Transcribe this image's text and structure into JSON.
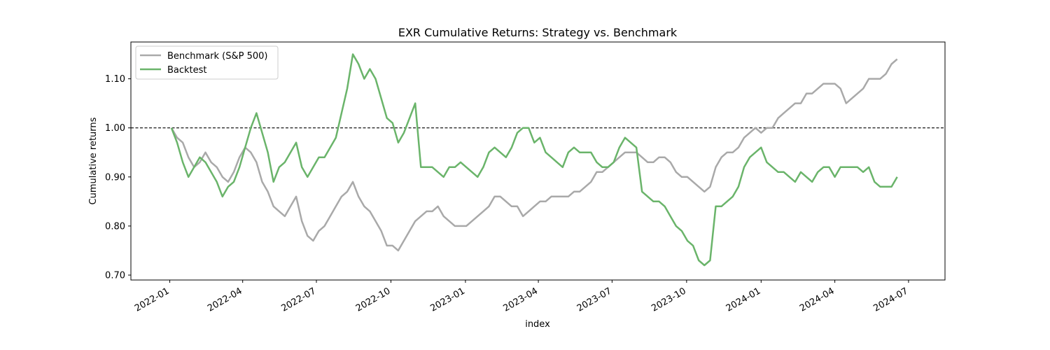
{
  "chart_data": {
    "type": "line",
    "title": "EXR Cumulative Returns: Strategy vs. Benchmark",
    "xlabel": "index",
    "ylabel": "Cumulative returns",
    "xlim": [
      "2021-11-14",
      "2024-08-15"
    ],
    "ylim": [
      0.69,
      1.175
    ],
    "x_ticks": [
      "2022-01",
      "2022-04",
      "2022-07",
      "2022-10",
      "2023-01",
      "2023-04",
      "2023-07",
      "2023-10",
      "2024-01",
      "2024-04",
      "2024-07"
    ],
    "y_ticks": [
      "0.70",
      "0.80",
      "0.90",
      "1.00",
      "1.10"
    ],
    "y_tick_values": [
      0.7,
      0.8,
      0.9,
      1.0,
      1.1
    ],
    "reference_line": {
      "y": 1.0,
      "style": "dashed",
      "color": "#000000"
    },
    "grid": false,
    "legend_position": "top-left",
    "series": [
      {
        "name": "Benchmark (S&P 500)",
        "color": "#a9a9a9",
        "points": [
          [
            "2022-01-03",
            1.0
          ],
          [
            "2022-01-10",
            0.98
          ],
          [
            "2022-01-17",
            0.97
          ],
          [
            "2022-01-24",
            0.94
          ],
          [
            "2022-01-31",
            0.92
          ],
          [
            "2022-02-07",
            0.93
          ],
          [
            "2022-02-14",
            0.95
          ],
          [
            "2022-02-21",
            0.93
          ],
          [
            "2022-02-28",
            0.92
          ],
          [
            "2022-03-07",
            0.9
          ],
          [
            "2022-03-14",
            0.89
          ],
          [
            "2022-03-21",
            0.91
          ],
          [
            "2022-03-28",
            0.94
          ],
          [
            "2022-04-04",
            0.96
          ],
          [
            "2022-04-11",
            0.95
          ],
          [
            "2022-04-18",
            0.93
          ],
          [
            "2022-04-25",
            0.89
          ],
          [
            "2022-05-02",
            0.87
          ],
          [
            "2022-05-09",
            0.84
          ],
          [
            "2022-05-16",
            0.83
          ],
          [
            "2022-05-23",
            0.82
          ],
          [
            "2022-05-30",
            0.84
          ],
          [
            "2022-06-06",
            0.86
          ],
          [
            "2022-06-13",
            0.81
          ],
          [
            "2022-06-20",
            0.78
          ],
          [
            "2022-06-27",
            0.77
          ],
          [
            "2022-07-04",
            0.79
          ],
          [
            "2022-07-11",
            0.8
          ],
          [
            "2022-07-18",
            0.82
          ],
          [
            "2022-07-25",
            0.84
          ],
          [
            "2022-08-01",
            0.86
          ],
          [
            "2022-08-08",
            0.87
          ],
          [
            "2022-08-15",
            0.89
          ],
          [
            "2022-08-22",
            0.86
          ],
          [
            "2022-08-29",
            0.84
          ],
          [
            "2022-09-05",
            0.83
          ],
          [
            "2022-09-12",
            0.81
          ],
          [
            "2022-09-19",
            0.79
          ],
          [
            "2022-09-26",
            0.76
          ],
          [
            "2022-10-03",
            0.76
          ],
          [
            "2022-10-10",
            0.75
          ],
          [
            "2022-10-17",
            0.77
          ],
          [
            "2022-10-24",
            0.79
          ],
          [
            "2022-10-31",
            0.81
          ],
          [
            "2022-11-07",
            0.82
          ],
          [
            "2022-11-14",
            0.83
          ],
          [
            "2022-11-21",
            0.83
          ],
          [
            "2022-11-28",
            0.84
          ],
          [
            "2022-12-05",
            0.82
          ],
          [
            "2022-12-12",
            0.81
          ],
          [
            "2022-12-19",
            0.8
          ],
          [
            "2022-12-26",
            0.8
          ],
          [
            "2023-01-02",
            0.8
          ],
          [
            "2023-01-09",
            0.81
          ],
          [
            "2023-01-16",
            0.82
          ],
          [
            "2023-01-23",
            0.83
          ],
          [
            "2023-01-30",
            0.84
          ],
          [
            "2023-02-06",
            0.86
          ],
          [
            "2023-02-13",
            0.86
          ],
          [
            "2023-02-20",
            0.85
          ],
          [
            "2023-02-27",
            0.84
          ],
          [
            "2023-03-06",
            0.84
          ],
          [
            "2023-03-13",
            0.82
          ],
          [
            "2023-03-20",
            0.83
          ],
          [
            "2023-03-27",
            0.84
          ],
          [
            "2023-04-03",
            0.85
          ],
          [
            "2023-04-10",
            0.85
          ],
          [
            "2023-04-17",
            0.86
          ],
          [
            "2023-04-24",
            0.86
          ],
          [
            "2023-05-01",
            0.86
          ],
          [
            "2023-05-08",
            0.86
          ],
          [
            "2023-05-15",
            0.87
          ],
          [
            "2023-05-22",
            0.87
          ],
          [
            "2023-05-29",
            0.88
          ],
          [
            "2023-06-05",
            0.89
          ],
          [
            "2023-06-12",
            0.91
          ],
          [
            "2023-06-19",
            0.91
          ],
          [
            "2023-06-26",
            0.92
          ],
          [
            "2023-07-03",
            0.93
          ],
          [
            "2023-07-10",
            0.94
          ],
          [
            "2023-07-17",
            0.95
          ],
          [
            "2023-07-24",
            0.95
          ],
          [
            "2023-07-31",
            0.95
          ],
          [
            "2023-08-07",
            0.94
          ],
          [
            "2023-08-14",
            0.93
          ],
          [
            "2023-08-21",
            0.93
          ],
          [
            "2023-08-28",
            0.94
          ],
          [
            "2023-09-04",
            0.94
          ],
          [
            "2023-09-11",
            0.93
          ],
          [
            "2023-09-18",
            0.91
          ],
          [
            "2023-09-25",
            0.9
          ],
          [
            "2023-10-02",
            0.9
          ],
          [
            "2023-10-09",
            0.89
          ],
          [
            "2023-10-16",
            0.88
          ],
          [
            "2023-10-23",
            0.87
          ],
          [
            "2023-10-30",
            0.88
          ],
          [
            "2023-11-06",
            0.92
          ],
          [
            "2023-11-13",
            0.94
          ],
          [
            "2023-11-20",
            0.95
          ],
          [
            "2023-11-27",
            0.95
          ],
          [
            "2023-12-04",
            0.96
          ],
          [
            "2023-12-11",
            0.98
          ],
          [
            "2023-12-18",
            0.99
          ],
          [
            "2023-12-25",
            1.0
          ],
          [
            "2024-01-01",
            0.99
          ],
          [
            "2024-01-08",
            1.0
          ],
          [
            "2024-01-15",
            1.0
          ],
          [
            "2024-01-22",
            1.02
          ],
          [
            "2024-01-29",
            1.03
          ],
          [
            "2024-02-05",
            1.04
          ],
          [
            "2024-02-12",
            1.05
          ],
          [
            "2024-02-19",
            1.05
          ],
          [
            "2024-02-26",
            1.07
          ],
          [
            "2024-03-04",
            1.07
          ],
          [
            "2024-03-11",
            1.08
          ],
          [
            "2024-03-18",
            1.09
          ],
          [
            "2024-03-25",
            1.09
          ],
          [
            "2024-04-01",
            1.09
          ],
          [
            "2024-04-08",
            1.08
          ],
          [
            "2024-04-15",
            1.05
          ],
          [
            "2024-04-22",
            1.06
          ],
          [
            "2024-04-29",
            1.07
          ],
          [
            "2024-05-06",
            1.08
          ],
          [
            "2024-05-13",
            1.1
          ],
          [
            "2024-05-20",
            1.1
          ],
          [
            "2024-05-27",
            1.1
          ],
          [
            "2024-06-03",
            1.11
          ],
          [
            "2024-06-10",
            1.13
          ],
          [
            "2024-06-17",
            1.14
          ]
        ]
      },
      {
        "name": "Backtest",
        "color": "#6ab46a",
        "points": [
          [
            "2022-01-03",
            1.0
          ],
          [
            "2022-01-10",
            0.97
          ],
          [
            "2022-01-17",
            0.93
          ],
          [
            "2022-01-24",
            0.9
          ],
          [
            "2022-01-31",
            0.92
          ],
          [
            "2022-02-07",
            0.94
          ],
          [
            "2022-02-14",
            0.93
          ],
          [
            "2022-02-21",
            0.91
          ],
          [
            "2022-02-28",
            0.89
          ],
          [
            "2022-03-07",
            0.86
          ],
          [
            "2022-03-14",
            0.88
          ],
          [
            "2022-03-21",
            0.89
          ],
          [
            "2022-03-28",
            0.92
          ],
          [
            "2022-04-04",
            0.96
          ],
          [
            "2022-04-11",
            1.0
          ],
          [
            "2022-04-18",
            1.03
          ],
          [
            "2022-04-25",
            0.99
          ],
          [
            "2022-05-02",
            0.95
          ],
          [
            "2022-05-09",
            0.89
          ],
          [
            "2022-05-16",
            0.92
          ],
          [
            "2022-05-23",
            0.93
          ],
          [
            "2022-05-30",
            0.95
          ],
          [
            "2022-06-06",
            0.97
          ],
          [
            "2022-06-13",
            0.92
          ],
          [
            "2022-06-20",
            0.9
          ],
          [
            "2022-06-27",
            0.92
          ],
          [
            "2022-07-04",
            0.94
          ],
          [
            "2022-07-11",
            0.94
          ],
          [
            "2022-07-18",
            0.96
          ],
          [
            "2022-07-25",
            0.98
          ],
          [
            "2022-08-01",
            1.03
          ],
          [
            "2022-08-08",
            1.08
          ],
          [
            "2022-08-15",
            1.15
          ],
          [
            "2022-08-22",
            1.13
          ],
          [
            "2022-08-29",
            1.1
          ],
          [
            "2022-09-05",
            1.12
          ],
          [
            "2022-09-12",
            1.1
          ],
          [
            "2022-09-19",
            1.06
          ],
          [
            "2022-09-26",
            1.02
          ],
          [
            "2022-10-03",
            1.01
          ],
          [
            "2022-10-10",
            0.97
          ],
          [
            "2022-10-17",
            0.99
          ],
          [
            "2022-10-24",
            1.02
          ],
          [
            "2022-10-31",
            1.05
          ],
          [
            "2022-11-07",
            0.92
          ],
          [
            "2022-11-14",
            0.92
          ],
          [
            "2022-11-21",
            0.92
          ],
          [
            "2022-11-28",
            0.91
          ],
          [
            "2022-12-05",
            0.9
          ],
          [
            "2022-12-12",
            0.92
          ],
          [
            "2022-12-19",
            0.92
          ],
          [
            "2022-12-26",
            0.93
          ],
          [
            "2023-01-02",
            0.92
          ],
          [
            "2023-01-09",
            0.91
          ],
          [
            "2023-01-16",
            0.9
          ],
          [
            "2023-01-23",
            0.92
          ],
          [
            "2023-01-30",
            0.95
          ],
          [
            "2023-02-06",
            0.96
          ],
          [
            "2023-02-13",
            0.95
          ],
          [
            "2023-02-20",
            0.94
          ],
          [
            "2023-02-27",
            0.96
          ],
          [
            "2023-03-06",
            0.99
          ],
          [
            "2023-03-13",
            1.0
          ],
          [
            "2023-03-20",
            1.0
          ],
          [
            "2023-03-27",
            0.97
          ],
          [
            "2023-04-03",
            0.98
          ],
          [
            "2023-04-10",
            0.95
          ],
          [
            "2023-04-17",
            0.94
          ],
          [
            "2023-04-24",
            0.93
          ],
          [
            "2023-05-01",
            0.92
          ],
          [
            "2023-05-08",
            0.95
          ],
          [
            "2023-05-15",
            0.96
          ],
          [
            "2023-05-22",
            0.95
          ],
          [
            "2023-05-29",
            0.95
          ],
          [
            "2023-06-05",
            0.95
          ],
          [
            "2023-06-12",
            0.93
          ],
          [
            "2023-06-19",
            0.92
          ],
          [
            "2023-06-26",
            0.92
          ],
          [
            "2023-07-03",
            0.93
          ],
          [
            "2023-07-10",
            0.96
          ],
          [
            "2023-07-17",
            0.98
          ],
          [
            "2023-07-24",
            0.97
          ],
          [
            "2023-07-31",
            0.96
          ],
          [
            "2023-08-07",
            0.87
          ],
          [
            "2023-08-14",
            0.86
          ],
          [
            "2023-08-21",
            0.85
          ],
          [
            "2023-08-28",
            0.85
          ],
          [
            "2023-09-04",
            0.84
          ],
          [
            "2023-09-11",
            0.82
          ],
          [
            "2023-09-18",
            0.8
          ],
          [
            "2023-09-25",
            0.79
          ],
          [
            "2023-10-02",
            0.77
          ],
          [
            "2023-10-09",
            0.76
          ],
          [
            "2023-10-16",
            0.73
          ],
          [
            "2023-10-23",
            0.72
          ],
          [
            "2023-10-30",
            0.73
          ],
          [
            "2023-11-06",
            0.84
          ],
          [
            "2023-11-13",
            0.84
          ],
          [
            "2023-11-20",
            0.85
          ],
          [
            "2023-11-27",
            0.86
          ],
          [
            "2023-12-04",
            0.88
          ],
          [
            "2023-12-11",
            0.92
          ],
          [
            "2023-12-18",
            0.94
          ],
          [
            "2023-12-25",
            0.95
          ],
          [
            "2024-01-01",
            0.96
          ],
          [
            "2024-01-08",
            0.93
          ],
          [
            "2024-01-15",
            0.92
          ],
          [
            "2024-01-22",
            0.91
          ],
          [
            "2024-01-29",
            0.91
          ],
          [
            "2024-02-05",
            0.9
          ],
          [
            "2024-02-12",
            0.89
          ],
          [
            "2024-02-19",
            0.91
          ],
          [
            "2024-02-26",
            0.9
          ],
          [
            "2024-03-04",
            0.89
          ],
          [
            "2024-03-11",
            0.91
          ],
          [
            "2024-03-18",
            0.92
          ],
          [
            "2024-03-25",
            0.92
          ],
          [
            "2024-04-01",
            0.9
          ],
          [
            "2024-04-08",
            0.92
          ],
          [
            "2024-04-15",
            0.92
          ],
          [
            "2024-04-22",
            0.92
          ],
          [
            "2024-04-29",
            0.92
          ],
          [
            "2024-05-06",
            0.91
          ],
          [
            "2024-05-13",
            0.92
          ],
          [
            "2024-05-20",
            0.89
          ],
          [
            "2024-05-27",
            0.88
          ],
          [
            "2024-06-03",
            0.88
          ],
          [
            "2024-06-10",
            0.88
          ],
          [
            "2024-06-17",
            0.9
          ]
        ]
      }
    ]
  }
}
